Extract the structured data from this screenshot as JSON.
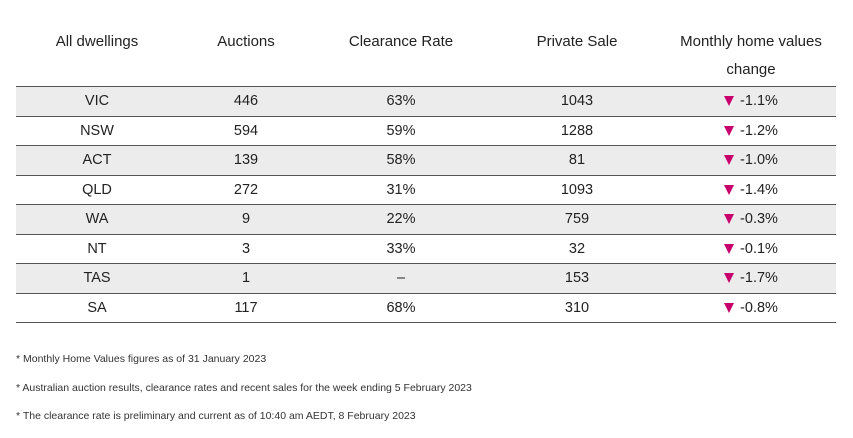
{
  "table": {
    "headers": [
      "All dwellings",
      "Auctions",
      "Clearance Rate",
      "Private Sale",
      "Monthly home values change"
    ],
    "rows": [
      {
        "region": "VIC",
        "auctions": "446",
        "clearance_rate": "63%",
        "private_sale": "1043",
        "monthly_change": "-1.1%"
      },
      {
        "region": "NSW",
        "auctions": "594",
        "clearance_rate": "59%",
        "private_sale": "1288",
        "monthly_change": "-1.2%"
      },
      {
        "region": "ACT",
        "auctions": "139",
        "clearance_rate": "58%",
        "private_sale": "81",
        "monthly_change": "-1.0%"
      },
      {
        "region": "QLD",
        "auctions": "272",
        "clearance_rate": "31%",
        "private_sale": "1093",
        "monthly_change": "-1.4%"
      },
      {
        "region": "WA",
        "auctions": "9",
        "clearance_rate": "22%",
        "private_sale": "759",
        "monthly_change": "-0.3%"
      },
      {
        "region": "NT",
        "auctions": "3",
        "clearance_rate": "33%",
        "private_sale": "32",
        "monthly_change": "-0.1%"
      },
      {
        "region": "TAS",
        "auctions": "1",
        "clearance_rate": "–",
        "private_sale": "153",
        "monthly_change": "-1.7%"
      },
      {
        "region": "SA",
        "auctions": "117",
        "clearance_rate": "68%",
        "private_sale": "310",
        "monthly_change": "-0.8%"
      }
    ],
    "change_icon": "triangle-down-icon",
    "colors": {
      "accent": "#c8006e",
      "row_shade": "#ececec"
    }
  },
  "footnotes": [
    "* Monthly Home Values figures as of 31 January 2023",
    "* Australian auction results, clearance rates and recent sales for the week ending 5 February 2023",
    "* The clearance rate is preliminary and current as of 10:40 am AEDT, 8 February 2023"
  ]
}
